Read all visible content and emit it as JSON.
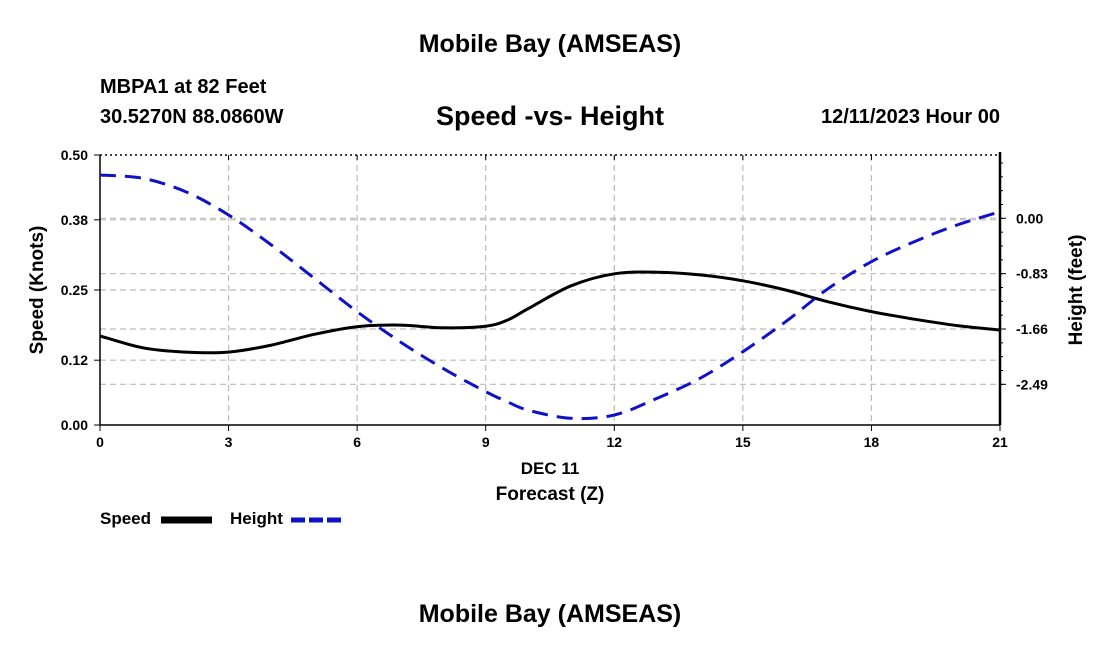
{
  "header": {
    "title": "Mobile Bay (AMSEAS)",
    "station": "MBPA1 at 82 Feet",
    "coords": "30.5270N  88.0860W",
    "chart_title": "Speed -vs- Height",
    "datetime": "12/11/2023 Hour 00"
  },
  "footer": {
    "title": "Mobile Bay (AMSEAS)"
  },
  "legend": {
    "speed_label": "Speed",
    "height_label": "Height"
  },
  "colors": {
    "speed": "#000000",
    "height": "#1010c8",
    "grid": "#bbbbbb"
  },
  "chart_data": {
    "type": "line",
    "title": "Speed -vs- Height",
    "xlabel": "Forecast (Z)",
    "xlabel_date": "DEC 11",
    "ylabel_left": "Speed (Knots)",
    "ylabel_right": "Height (feet)",
    "xlim": [
      0,
      21
    ],
    "ylim_left": [
      0,
      0.5
    ],
    "ylim_right": [
      -3.1,
      0.95
    ],
    "x_ticks": [
      "0",
      "3",
      "6",
      "9",
      "12",
      "15",
      "18",
      "21"
    ],
    "y_left_ticks": [
      "0.00",
      "0.12",
      "0.25",
      "0.38",
      "0.50"
    ],
    "y_right_ticks": [
      "0.00",
      "-0.83",
      "-1.66",
      "-2.49"
    ],
    "grid": true,
    "legend_position": "bottom-left",
    "x": [
      0,
      1,
      2,
      3,
      4,
      5,
      6,
      7,
      8,
      9,
      9.5,
      10,
      11,
      12,
      13,
      14,
      15,
      16,
      17,
      18,
      19,
      20,
      21
    ],
    "series": [
      {
        "name": "Speed",
        "axis": "left",
        "style": "solid",
        "values": [
          0.165,
          0.143,
          0.135,
          0.135,
          0.148,
          0.168,
          0.182,
          0.185,
          0.18,
          0.183,
          0.194,
          0.216,
          0.258,
          0.28,
          0.283,
          0.278,
          0.267,
          0.25,
          0.228,
          0.21,
          0.196,
          0.184,
          0.176
        ]
      },
      {
        "name": "Height",
        "axis": "right",
        "style": "dashed",
        "values": [
          0.65,
          0.6,
          0.4,
          0.05,
          -0.4,
          -0.9,
          -1.4,
          -1.85,
          -2.25,
          -2.6,
          -2.75,
          -2.88,
          -3.0,
          -2.95,
          -2.7,
          -2.4,
          -2.0,
          -1.55,
          -1.05,
          -0.65,
          -0.35,
          -0.1,
          0.1
        ]
      }
    ]
  }
}
